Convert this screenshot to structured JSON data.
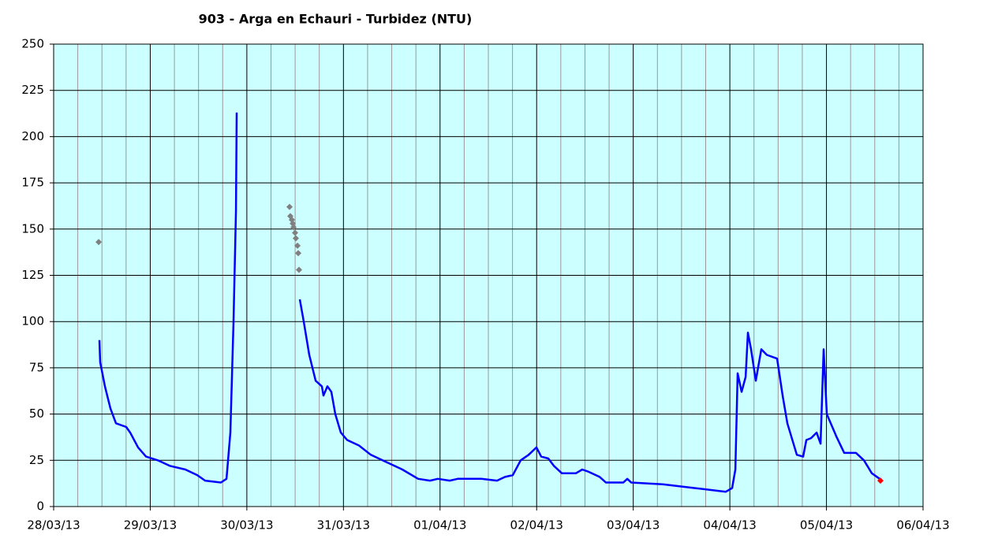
{
  "chart_data": {
    "type": "line",
    "title": "903 - Arga en Echauri - Turbidez (NTU)",
    "xlim": [
      0,
      9
    ],
    "xticks": [
      {
        "value": 0,
        "label": "28/03/13"
      },
      {
        "value": 1,
        "label": "29/03/13"
      },
      {
        "value": 2,
        "label": "30/03/13"
      },
      {
        "value": 3,
        "label": "31/03/13"
      },
      {
        "value": 4,
        "label": "01/04/13"
      },
      {
        "value": 5,
        "label": "02/04/13"
      },
      {
        "value": 6,
        "label": "03/04/13"
      },
      {
        "value": 7,
        "label": "04/04/13"
      },
      {
        "value": 8,
        "label": "05/04/13"
      },
      {
        "value": 9,
        "label": "06/04/13"
      }
    ],
    "ylim": [
      0,
      250
    ],
    "yticks": [
      0,
      25,
      50,
      75,
      100,
      125,
      150,
      175,
      200,
      225,
      250
    ],
    "grid": true,
    "background": "#ccffff",
    "series": [
      {
        "type": "line",
        "color": "#0000ff",
        "x": [
          0.474,
          0.482,
          0.531,
          0.588,
          0.645,
          0.751,
          0.792,
          0.874,
          0.956,
          1.078,
          1.201,
          1.364,
          1.486,
          1.568,
          1.731,
          1.789,
          1.829,
          1.862,
          1.887,
          1.895,
          2.2,
          2.548,
          2.589,
          2.646,
          2.712,
          2.777,
          2.793,
          2.834,
          2.875,
          2.916,
          2.973,
          3.038,
          3.161,
          3.283,
          3.446,
          3.61,
          3.773,
          3.896,
          3.977,
          4.1,
          4.182,
          4.427,
          4.59,
          4.672,
          4.753,
          4.835,
          4.917,
          4.998,
          5.047,
          5.121,
          5.178,
          5.26,
          5.407,
          5.472,
          5.529,
          5.652,
          5.717,
          5.897,
          5.938,
          5.979,
          6.305,
          6.632,
          6.958,
          7.024,
          7.057,
          7.081,
          7.122,
          7.163,
          7.187,
          7.22,
          7.269,
          7.326,
          7.383,
          7.489,
          7.546,
          7.595,
          7.693,
          7.759,
          7.792,
          7.841,
          7.898,
          7.939,
          7.971,
          8.004,
          8.102,
          8.184,
          8.306,
          8.388,
          8.469,
          8.551
        ],
        "values": [
          90,
          78,
          65,
          53,
          45,
          43,
          40,
          32,
          27,
          25,
          22,
          20,
          17,
          14,
          13,
          15,
          40,
          100,
          160,
          213,
          null,
          112,
          100,
          82,
          68,
          65,
          60,
          65,
          62,
          50,
          40,
          36,
          33,
          28,
          24,
          20,
          15,
          14,
          15,
          14,
          15,
          15,
          14,
          16,
          17,
          25,
          28,
          32,
          27,
          26,
          22,
          18,
          18,
          20,
          19,
          16,
          13,
          13,
          15,
          13,
          12,
          10,
          8,
          10,
          20,
          72,
          62,
          70,
          94,
          85,
          68,
          85,
          82,
          80,
          60,
          45,
          28,
          27,
          36,
          37,
          40,
          34,
          85,
          50,
          38,
          29,
          29,
          25,
          18,
          15
        ]
      },
      {
        "type": "scatter",
        "color": "#808080",
        "x": [
          0.466,
          2.442,
          2.45,
          2.466,
          2.475,
          2.483,
          2.499,
          2.507,
          2.524,
          2.532,
          2.54
        ],
        "values": [
          143,
          162,
          157,
          155,
          153,
          151,
          148,
          145,
          141,
          137,
          128
        ]
      },
      {
        "type": "scatter",
        "color": "#ff0000",
        "x": [
          8.559
        ],
        "values": [
          14
        ]
      }
    ]
  }
}
